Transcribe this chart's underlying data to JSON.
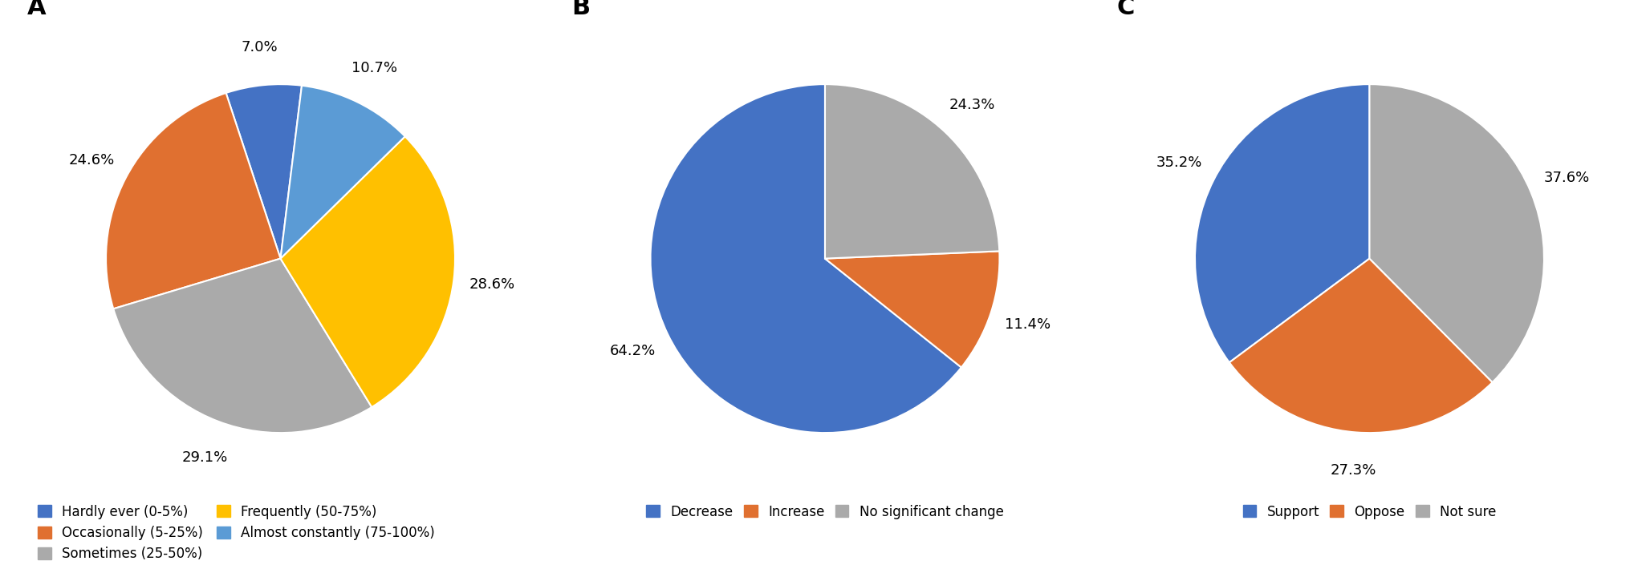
{
  "chart_A": {
    "label": "A",
    "slices": [
      7.0,
      24.6,
      29.1,
      28.6,
      10.7
    ],
    "colors": [
      "#4472C4",
      "#E07030",
      "#AAAAAA",
      "#FFC000",
      "#5B9BD5"
    ],
    "labels": [
      "7.0%",
      "24.6%",
      "29.1%",
      "28.6%",
      "10.7%"
    ],
    "startangle": 83,
    "legend": [
      [
        "Hardly ever (0-5%)",
        "#4472C4"
      ],
      [
        "Occasionally (5-25%)",
        "#E07030"
      ],
      [
        "Sometimes (25-50%)",
        "#AAAAAA"
      ],
      [
        "Frequently (50-75%)",
        "#FFC000"
      ],
      [
        "Almost constantly (75-100%)",
        "#5B9BD5"
      ]
    ]
  },
  "chart_B": {
    "label": "B",
    "slices": [
      64.2,
      11.4,
      24.3
    ],
    "colors": [
      "#4472C4",
      "#E07030",
      "#AAAAAA"
    ],
    "labels": [
      "64.2%",
      "11.4%",
      "24.3%"
    ],
    "startangle": 90,
    "legend": [
      [
        "Decrease",
        "#4472C4"
      ],
      [
        "Increase",
        "#E07030"
      ],
      [
        "No significant change",
        "#AAAAAA"
      ]
    ]
  },
  "chart_C": {
    "label": "C",
    "slices": [
      35.2,
      27.3,
      37.6
    ],
    "colors": [
      "#4472C4",
      "#E07030",
      "#AAAAAA"
    ],
    "labels": [
      "35.2%",
      "27.3%",
      "37.6%"
    ],
    "startangle": 90,
    "legend": [
      [
        "Support",
        "#4472C4"
      ],
      [
        "Oppose",
        "#E07030"
      ],
      [
        "Not sure",
        "#AAAAAA"
      ]
    ]
  },
  "label_fontsize": 13,
  "legend_fontsize": 12,
  "panel_label_fontsize": 22,
  "background_color": "#FFFFFF"
}
